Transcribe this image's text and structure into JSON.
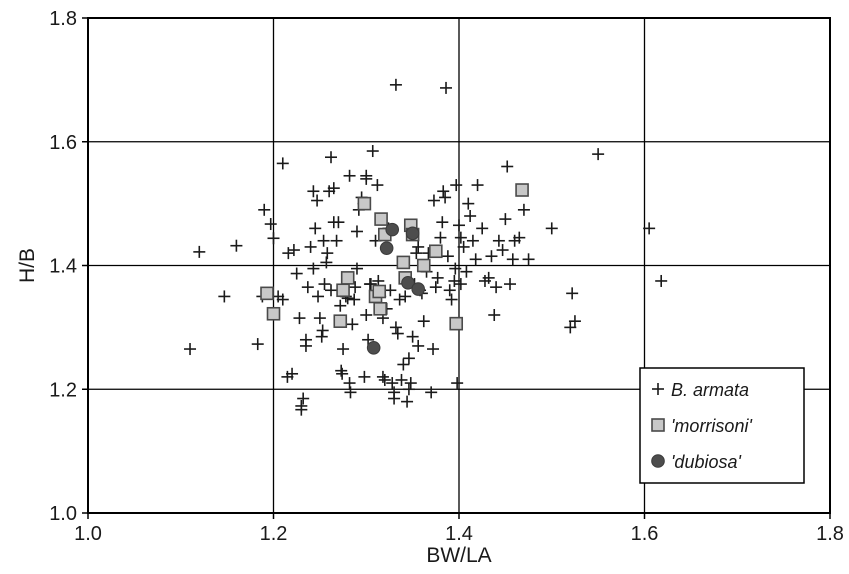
{
  "chart_data": {
    "type": "scatter",
    "title": "",
    "xlabel": "BW/LA",
    "ylabel": "H/B",
    "xlim": [
      1.0,
      1.8
    ],
    "ylim": [
      1.0,
      1.8
    ],
    "x_ticks": [
      "1.0",
      "1.2",
      "1.4",
      "1.6",
      "1.8"
    ],
    "y_ticks": [
      "1.0",
      "1.2",
      "1.4",
      "1.6",
      "1.8"
    ],
    "grid": true,
    "legend_position": "bottom-right",
    "series": [
      {
        "name": "B. armata",
        "legend_label": "B. armata",
        "marker": "plus",
        "color": "#1a1a1a",
        "points": [
          [
            1.11,
            1.265
          ],
          [
            1.12,
            1.422
          ],
          [
            1.147,
            1.35
          ],
          [
            1.16,
            1.432
          ],
          [
            1.183,
            1.273
          ],
          [
            1.19,
            1.49
          ],
          [
            1.188,
            1.35
          ],
          [
            1.197,
            1.467
          ],
          [
            1.2,
            1.444
          ],
          [
            1.205,
            1.35
          ],
          [
            1.21,
            1.565
          ],
          [
            1.21,
            1.345
          ],
          [
            1.215,
            1.22
          ],
          [
            1.22,
            1.225
          ],
          [
            1.222,
            1.425
          ],
          [
            1.225,
            1.387
          ],
          [
            1.228,
            1.315
          ],
          [
            1.23,
            1.173
          ],
          [
            1.23,
            1.167
          ],
          [
            1.232,
            1.185
          ],
          [
            1.235,
            1.27
          ],
          [
            1.235,
            1.28
          ],
          [
            1.237,
            1.365
          ],
          [
            1.24,
            1.43
          ],
          [
            1.243,
            1.395
          ],
          [
            1.245,
            1.46
          ],
          [
            1.247,
            1.505
          ],
          [
            1.248,
            1.35
          ],
          [
            1.25,
            1.315
          ],
          [
            1.252,
            1.285
          ],
          [
            1.253,
            1.295
          ],
          [
            1.255,
            1.37
          ],
          [
            1.257,
            1.405
          ],
          [
            1.258,
            1.42
          ],
          [
            1.26,
            1.52
          ],
          [
            1.262,
            1.575
          ],
          [
            1.265,
            1.525
          ],
          [
            1.265,
            1.47
          ],
          [
            1.268,
            1.44
          ],
          [
            1.27,
            1.47
          ],
          [
            1.272,
            1.335
          ],
          [
            1.273,
            1.23
          ],
          [
            1.274,
            1.225
          ],
          [
            1.275,
            1.265
          ],
          [
            1.278,
            1.35
          ],
          [
            1.28,
            1.347
          ],
          [
            1.282,
            1.21
          ],
          [
            1.283,
            1.195
          ],
          [
            1.285,
            1.305
          ],
          [
            1.287,
            1.345
          ],
          [
            1.288,
            1.365
          ],
          [
            1.29,
            1.395
          ],
          [
            1.29,
            1.455
          ],
          [
            1.292,
            1.49
          ],
          [
            1.295,
            1.51
          ],
          [
            1.297,
            1.5
          ],
          [
            1.298,
            1.22
          ],
          [
            1.3,
            1.545
          ],
          [
            1.3,
            1.54
          ],
          [
            1.3,
            1.32
          ],
          [
            1.302,
            1.28
          ],
          [
            1.304,
            1.37
          ],
          [
            1.305,
            1.37
          ],
          [
            1.307,
            1.585
          ],
          [
            1.31,
            1.44
          ],
          [
            1.312,
            1.53
          ],
          [
            1.313,
            1.375
          ],
          [
            1.315,
            1.35
          ],
          [
            1.316,
            1.335
          ],
          [
            1.318,
            1.315
          ],
          [
            1.318,
            1.22
          ],
          [
            1.32,
            1.215
          ],
          [
            1.322,
            1.33
          ],
          [
            1.324,
            1.46
          ],
          [
            1.326,
            1.36
          ],
          [
            1.328,
            1.21
          ],
          [
            1.33,
            1.185
          ],
          [
            1.33,
            1.195
          ],
          [
            1.332,
            1.3
          ],
          [
            1.334,
            1.29
          ],
          [
            1.336,
            1.345
          ],
          [
            1.338,
            1.215
          ],
          [
            1.34,
            1.24
          ],
          [
            1.342,
            1.35
          ],
          [
            1.344,
            1.18
          ],
          [
            1.346,
            1.2
          ],
          [
            1.348,
            1.21
          ],
          [
            1.35,
            1.285
          ],
          [
            1.352,
            1.37
          ],
          [
            1.354,
            1.42
          ],
          [
            1.356,
            1.43
          ],
          [
            1.358,
            1.36
          ],
          [
            1.36,
            1.355
          ],
          [
            1.362,
            1.31
          ],
          [
            1.365,
            1.39
          ],
          [
            1.367,
            1.42
          ],
          [
            1.37,
            1.195
          ],
          [
            1.372,
            1.265
          ],
          [
            1.373,
            1.505
          ],
          [
            1.375,
            1.365
          ],
          [
            1.377,
            1.38
          ],
          [
            1.38,
            1.445
          ],
          [
            1.382,
            1.47
          ],
          [
            1.383,
            1.52
          ],
          [
            1.385,
            1.51
          ],
          [
            1.388,
            1.415
          ],
          [
            1.39,
            1.36
          ],
          [
            1.392,
            1.345
          ],
          [
            1.395,
            1.375
          ],
          [
            1.397,
            1.53
          ],
          [
            1.398,
            1.21
          ],
          [
            1.4,
            1.465
          ],
          [
            1.402,
            1.445
          ],
          [
            1.405,
            1.43
          ],
          [
            1.408,
            1.39
          ],
          [
            1.41,
            1.5
          ],
          [
            1.412,
            1.48
          ],
          [
            1.415,
            1.44
          ],
          [
            1.418,
            1.41
          ],
          [
            1.42,
            1.53
          ],
          [
            1.425,
            1.46
          ],
          [
            1.428,
            1.375
          ],
          [
            1.432,
            1.38
          ],
          [
            1.435,
            1.415
          ],
          [
            1.438,
            1.32
          ],
          [
            1.44,
            1.365
          ],
          [
            1.443,
            1.44
          ],
          [
            1.447,
            1.425
          ],
          [
            1.45,
            1.475
          ],
          [
            1.452,
            1.56
          ],
          [
            1.455,
            1.37
          ],
          [
            1.458,
            1.41
          ],
          [
            1.46,
            1.44
          ],
          [
            1.465,
            1.445
          ],
          [
            1.47,
            1.49
          ],
          [
            1.475,
            1.41
          ],
          [
            1.5,
            1.46
          ],
          [
            1.52,
            1.3
          ],
          [
            1.522,
            1.355
          ],
          [
            1.525,
            1.31
          ],
          [
            1.55,
            1.58
          ],
          [
            1.605,
            1.46
          ],
          [
            1.618,
            1.375
          ],
          [
            1.332,
            1.692
          ],
          [
            1.386,
            1.687
          ],
          [
            1.282,
            1.545
          ],
          [
            1.243,
            1.52
          ],
          [
            1.402,
            1.37
          ],
          [
            1.396,
            1.395
          ],
          [
            1.346,
            1.25
          ],
          [
            1.356,
            1.27
          ],
          [
            1.262,
            1.36
          ],
          [
            1.216,
            1.42
          ],
          [
            1.254,
            1.44
          ]
        ]
      },
      {
        "name": "'morrisoni'",
        "legend_label": "'morrisoni'",
        "marker": "square",
        "color": "#c8c8c8",
        "points": [
          [
            1.193,
            1.355
          ],
          [
            1.2,
            1.322
          ],
          [
            1.272,
            1.31
          ],
          [
            1.275,
            1.36
          ],
          [
            1.28,
            1.38
          ],
          [
            1.298,
            1.5
          ],
          [
            1.31,
            1.35
          ],
          [
            1.314,
            1.358
          ],
          [
            1.315,
            1.33
          ],
          [
            1.316,
            1.475
          ],
          [
            1.32,
            1.45
          ],
          [
            1.34,
            1.405
          ],
          [
            1.342,
            1.38
          ],
          [
            1.348,
            1.465
          ],
          [
            1.35,
            1.45
          ],
          [
            1.362,
            1.4
          ],
          [
            1.375,
            1.423
          ],
          [
            1.397,
            1.306
          ],
          [
            1.468,
            1.522
          ]
        ]
      },
      {
        "name": "'dubiosa'",
        "legend_label": "'dubiosa'",
        "marker": "circle",
        "color": "#4d4d4d",
        "points": [
          [
            1.308,
            1.267
          ],
          [
            1.322,
            1.428
          ],
          [
            1.328,
            1.458
          ],
          [
            1.345,
            1.372
          ],
          [
            1.35,
            1.452
          ],
          [
            1.356,
            1.362
          ]
        ]
      }
    ]
  }
}
